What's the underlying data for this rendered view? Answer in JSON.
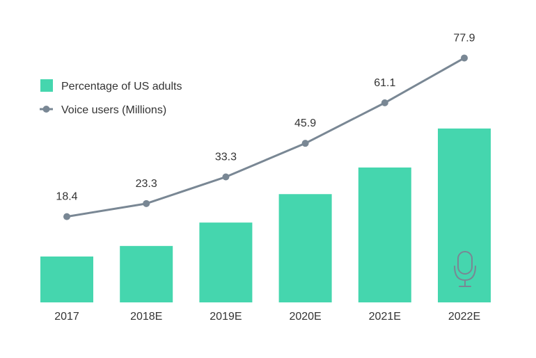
{
  "chart_data": {
    "type": "bar",
    "title": "",
    "xlabel": "",
    "ylabel": "",
    "categories": [
      "2017",
      "2018E",
      "2019E",
      "2020E",
      "2021E",
      "2022E"
    ],
    "series": [
      {
        "name": "Percentage of US adults",
        "type": "bar",
        "values": [
          10.0,
          12.3,
          17.4,
          23.6,
          29.4,
          37.9
        ]
      },
      {
        "name": "Voice users (Millions)",
        "type": "line",
        "values": [
          18.4,
          23.3,
          33.3,
          45.9,
          61.1,
          77.9
        ],
        "value_labels": [
          "18.4",
          "23.3",
          "33.3",
          "45.9",
          "61.1",
          "77.9"
        ]
      }
    ],
    "legend": {
      "position": "top-left",
      "items": [
        {
          "label": "Percentage of US adults",
          "marker": "square"
        },
        {
          "label": "Voice users (Millions)",
          "marker": "line-dot"
        }
      ]
    },
    "grid": false,
    "colors": {
      "bar": "#45d6ae",
      "line": "#798794",
      "text": "#333333"
    },
    "decoration_icon": "microphone-icon"
  }
}
